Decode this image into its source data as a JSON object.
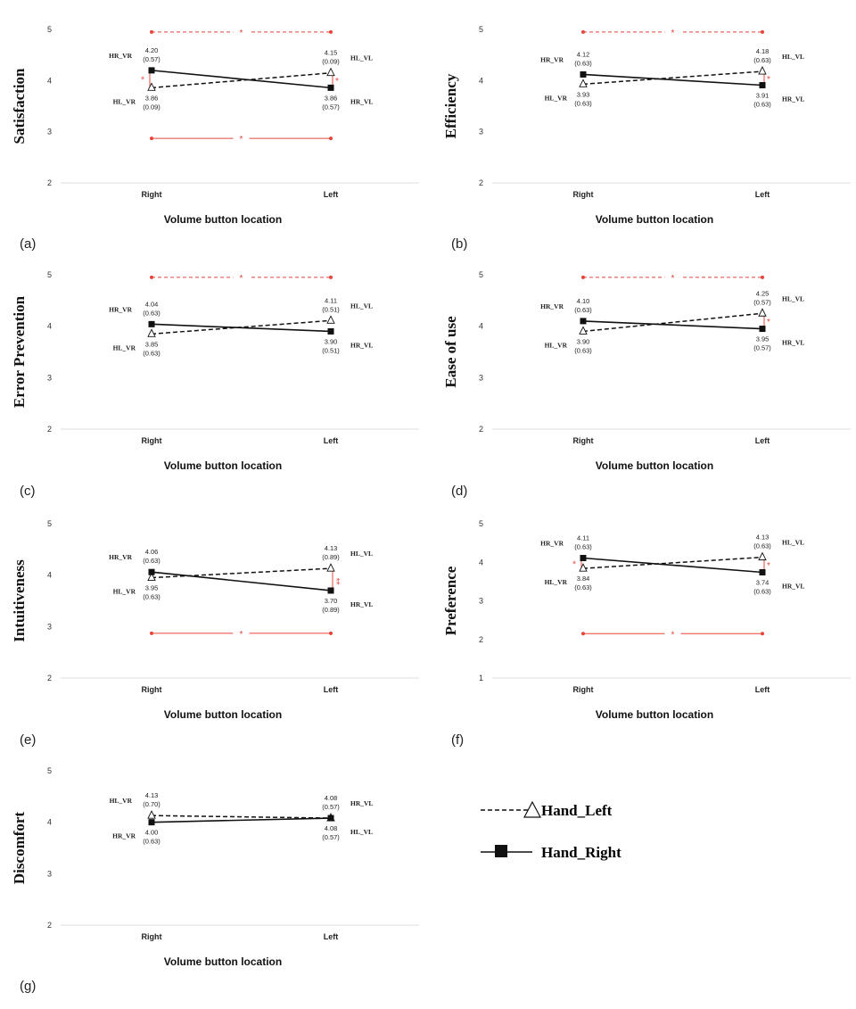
{
  "colors": {
    "line": "#111111",
    "sig": "#e8443a",
    "grid": "#dddddd",
    "tick": "#333333"
  },
  "legend": {
    "items": [
      {
        "name": "Hand_Left",
        "style": "dashed",
        "marker": "triangle"
      },
      {
        "name": "Hand_Right",
        "style": "solid",
        "marker": "square"
      }
    ]
  },
  "chart_data": [
    {
      "letter": "(a)",
      "type": "line",
      "ylabel": "Satisfaction",
      "xlabel": "Volume button location",
      "categories": [
        "Right",
        "Left"
      ],
      "yticks": [
        "2",
        "3",
        "4",
        "5"
      ],
      "ylim": [
        2,
        5
      ],
      "series": [
        {
          "name": "Hand_Left",
          "values": [
            3.86,
            4.15
          ],
          "sd": [
            "(0.09)",
            "(0.09)"
          ],
          "labels": [
            "HL_VR",
            "HL_VL"
          ]
        },
        {
          "name": "Hand_Right",
          "values": [
            4.2,
            3.86
          ],
          "sd": [
            "(0.57)",
            "(0.57)"
          ],
          "labels": [
            "HR_VR",
            "HR_VL"
          ]
        }
      ],
      "significance": {
        "top": {
          "value": 4.95,
          "style": "dashed",
          "mark": "*"
        },
        "bottom": {
          "value": 2.87,
          "style": "solid",
          "mark": "*"
        },
        "right_mark": "*",
        "left_mark": "*"
      }
    },
    {
      "letter": "(b)",
      "type": "line",
      "ylabel": "Efficiency",
      "xlabel": "Volume button location",
      "categories": [
        "Right",
        "Left"
      ],
      "yticks": [
        "2",
        "3",
        "4",
        "5"
      ],
      "ylim": [
        2,
        5
      ],
      "series": [
        {
          "name": "Hand_Left",
          "values": [
            3.93,
            4.18
          ],
          "sd": [
            "(0.63)",
            "(0.63)"
          ],
          "labels": [
            "HL_VR",
            "HL_VL"
          ]
        },
        {
          "name": "Hand_Right",
          "values": [
            4.12,
            3.91
          ],
          "sd": [
            "(0.63)",
            "(0.63)"
          ],
          "labels": [
            "HR_VR",
            "HR_VL"
          ]
        }
      ],
      "significance": {
        "top": {
          "value": 4.95,
          "style": "dashed",
          "mark": "*"
        },
        "left_mark": "*"
      }
    },
    {
      "letter": "(c)",
      "type": "line",
      "ylabel": "Error Prevention",
      "xlabel": "Volume button location",
      "categories": [
        "Right",
        "Left"
      ],
      "yticks": [
        "2",
        "3",
        "4",
        "5"
      ],
      "ylim": [
        2,
        5
      ],
      "series": [
        {
          "name": "Hand_Left",
          "values": [
            3.85,
            4.11
          ],
          "sd": [
            "(0.63)",
            "(0.51)"
          ],
          "labels": [
            "HL_VR",
            "HL_VL"
          ]
        },
        {
          "name": "Hand_Right",
          "values": [
            4.04,
            3.9
          ],
          "sd": [
            "(0.63)",
            "(0.51)"
          ],
          "labels": [
            "HR_VR",
            "HR_VL"
          ]
        }
      ],
      "significance": {
        "top": {
          "value": 4.95,
          "style": "dashed",
          "mark": "*"
        }
      }
    },
    {
      "letter": "(d)",
      "type": "line",
      "ylabel": "Ease of use",
      "xlabel": "Volume button location",
      "categories": [
        "Right",
        "Left"
      ],
      "yticks": [
        "2",
        "3",
        "4",
        "5"
      ],
      "ylim": [
        2,
        5
      ],
      "series": [
        {
          "name": "Hand_Left",
          "values": [
            3.9,
            4.25
          ],
          "sd": [
            "(0.63)",
            "(0.57)"
          ],
          "labels": [
            "HL_VR",
            "HL_VL"
          ]
        },
        {
          "name": "Hand_Right",
          "values": [
            4.1,
            3.95
          ],
          "sd": [
            "(0.63)",
            "(0.57)"
          ],
          "labels": [
            "HR_VR",
            "HR_VL"
          ]
        }
      ],
      "significance": {
        "top": {
          "value": 4.95,
          "style": "dashed",
          "mark": "*"
        },
        "left_mark": "*"
      }
    },
    {
      "letter": "(e)",
      "type": "line",
      "ylabel": "Intuitiveness",
      "xlabel": "Volume button location",
      "categories": [
        "Right",
        "Left"
      ],
      "yticks": [
        "2",
        "3",
        "4",
        "5"
      ],
      "ylim": [
        2,
        5
      ],
      "series": [
        {
          "name": "Hand_Left",
          "values": [
            3.95,
            4.13
          ],
          "sd": [
            "(0.63)",
            "(0.89)"
          ],
          "labels": [
            "HL_VR",
            "HL_VL"
          ]
        },
        {
          "name": "Hand_Right",
          "values": [
            4.06,
            3.7
          ],
          "sd": [
            "(0.63)",
            "(0.89)"
          ],
          "labels": [
            "HR_VR",
            "HR_VL"
          ]
        }
      ],
      "significance": {
        "bottom": {
          "value": 2.87,
          "style": "solid",
          "mark": "*"
        },
        "left_mark": "**"
      }
    },
    {
      "letter": "(f)",
      "type": "line",
      "ylabel": "Preference",
      "xlabel": "Volume button location",
      "categories": [
        "Right",
        "Left"
      ],
      "yticks": [
        "1",
        "2",
        "3",
        "4",
        "5"
      ],
      "ylim": [
        1,
        5
      ],
      "series": [
        {
          "name": "Hand_Left",
          "values": [
            3.84,
            4.13
          ],
          "sd": [
            "(0.63)",
            "(0.63)"
          ],
          "labels": [
            "HL_VR",
            "HL_VL"
          ]
        },
        {
          "name": "Hand_Right",
          "values": [
            4.11,
            3.74
          ],
          "sd": [
            "(0.63)",
            "(0.63)"
          ],
          "labels": [
            "HR_VR",
            "HR_VL"
          ]
        }
      ],
      "significance": {
        "bottom": {
          "value": 2.15,
          "style": "solid",
          "mark": "*"
        },
        "right_mark": "*",
        "left_mark": "*"
      }
    },
    {
      "letter": "(g)",
      "type": "line",
      "ylabel": "Discomfort",
      "xlabel": "Volume button location",
      "categories": [
        "Right",
        "Left"
      ],
      "yticks": [
        "2",
        "3",
        "4",
        "5"
      ],
      "ylim": [
        2,
        5
      ],
      "series": [
        {
          "name": "Hand_Left",
          "values": [
            4.13,
            4.08
          ],
          "sd": [
            "(0.70)",
            "(0.57)"
          ],
          "labels": [
            "HL_VR",
            "HR_VL"
          ]
        },
        {
          "name": "Hand_Right",
          "values": [
            4.0,
            4.08
          ],
          "sd": [
            "(0.63)",
            "(0.57)"
          ],
          "labels": [
            "HR_VR",
            "HL_VL"
          ]
        }
      ],
      "significance": {}
    }
  ]
}
